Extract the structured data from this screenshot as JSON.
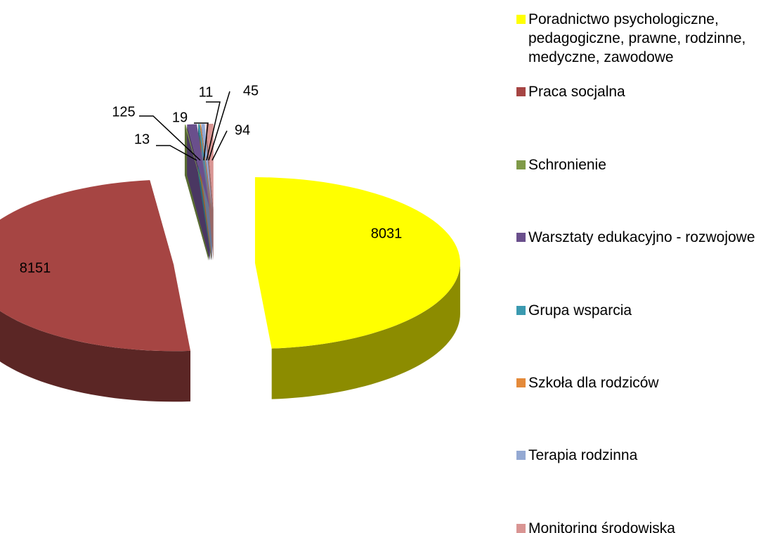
{
  "chart_data": {
    "type": "pie",
    "categories": [
      "Poradnictwo psychologiczne, pedagogiczne, prawne, rodzinne, medyczne, zawodowe",
      "Praca socjalna",
      "Schronienie",
      "Warsztaty edukacyjno - rozwojowe",
      "Grupa wsparcia",
      "Szkoła dla rodziców",
      "Terapia rodzinna",
      "Monitoring środowiska"
    ],
    "values": [
      8031,
      8151,
      13,
      125,
      19,
      11,
      45,
      94
    ],
    "colors": [
      "#ffff00",
      "#a64543",
      "#7f9a48",
      "#6a4f8c",
      "#3b9ab0",
      "#e48a3a",
      "#94a9d3",
      "#d99593"
    ],
    "legend": "right"
  }
}
